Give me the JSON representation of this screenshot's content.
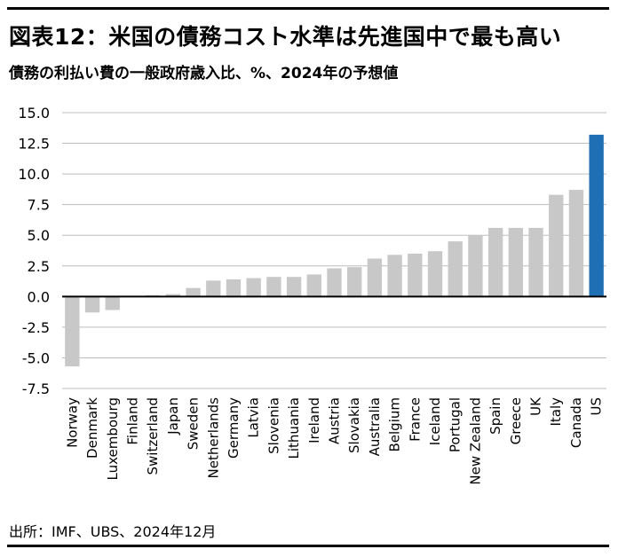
{
  "header": {
    "title": "図表12：米国の債務コスト水準は先進国中で最も高い",
    "subtitle": "債務の利払い費の一般政府歳入比、%、2024年の予想値"
  },
  "footer": {
    "source": "出所：IMF、UBS、2024年12月"
  },
  "chart_data": {
    "type": "bar",
    "categories": [
      "Norway",
      "Denmark",
      "Luxembourg",
      "Finland",
      "Switzerland",
      "Japan",
      "Sweden",
      "Netherlands",
      "Germany",
      "Latvia",
      "Slovenia",
      "Lithuania",
      "Ireland",
      "Austria",
      "Slovakia",
      "Australia",
      "Belgium",
      "France",
      "Iceland",
      "Portugal",
      "New Zealand",
      "Spain",
      "Greece",
      "UK",
      "Italy",
      "Canada",
      "US"
    ],
    "values": [
      -5.7,
      -1.3,
      -1.1,
      0.0,
      0.1,
      0.2,
      0.7,
      1.3,
      1.4,
      1.5,
      1.6,
      1.6,
      1.8,
      2.3,
      2.4,
      3.1,
      3.4,
      3.5,
      3.7,
      4.5,
      5.0,
      5.6,
      5.6,
      5.6,
      8.3,
      8.7,
      13.2
    ],
    "ylim": [
      -7.5,
      15.0
    ],
    "yticks": [
      "15.0",
      "12.5",
      "10.0",
      "7.5",
      "5.0",
      "2.5",
      "0.0",
      "-2.5",
      "-5.0",
      "-7.5"
    ],
    "ytick_values": [
      15.0,
      12.5,
      10.0,
      7.5,
      5.0,
      2.5,
      0.0,
      -2.5,
      -5.0,
      -7.5
    ],
    "grid": true,
    "colors": {
      "default": "#c8c8c8",
      "highlight": "#1f6fb4",
      "grid": "#bdbdbd",
      "axis": "#000000"
    },
    "highlight_category": "US"
  }
}
